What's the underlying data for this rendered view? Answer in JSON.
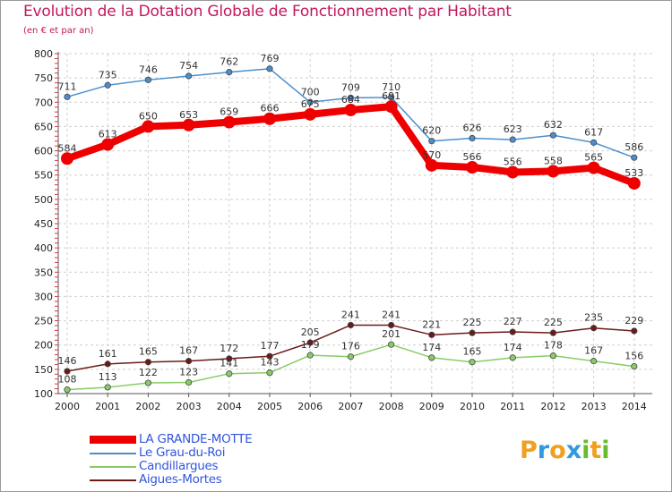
{
  "title": "Evolution de la Dotation Globale de Fonctionnement par Habitant",
  "subtitle": "(en € et par an)",
  "brand": {
    "letters": [
      "P",
      "r",
      "o",
      "x",
      "i",
      "t",
      "i"
    ],
    "colors": [
      "#f0a020",
      "#3399dd",
      "#f0a020",
      "#3399dd",
      "#66bb33",
      "#f0a020",
      "#66bb33"
    ]
  },
  "legend": [
    {
      "label": "LA GRANDE-MOTTE",
      "color": "#ee0000"
    },
    {
      "label": "Le Grau-du-Roi",
      "color": "#4a8fcc"
    },
    {
      "label": "Candillargues",
      "color": "#88cc66"
    },
    {
      "label": "Aigues-Mortes",
      "color": "#6b1a1a"
    }
  ],
  "chart_data": {
    "type": "line",
    "x": [
      "2000",
      "2001",
      "2002",
      "2003",
      "2004",
      "2005",
      "2006",
      "2007",
      "2008",
      "2009",
      "2010",
      "2011",
      "2012",
      "2013",
      "2014"
    ],
    "ylim": [
      100,
      800
    ],
    "yticks": [
      100,
      150,
      200,
      250,
      300,
      350,
      400,
      450,
      500,
      550,
      600,
      650,
      700,
      750,
      800
    ],
    "grid": true,
    "series": [
      {
        "name": "LA GRANDE-MOTTE",
        "color": "#ee0000",
        "values": [
          584,
          613,
          650,
          653,
          659,
          666,
          675,
          684,
          691,
          570,
          566,
          556,
          558,
          565,
          533
        ]
      },
      {
        "name": "Le Grau-du-Roi",
        "color": "#4a8fcc",
        "values": [
          711,
          735,
          746,
          754,
          762,
          769,
          700,
          709,
          710,
          620,
          626,
          623,
          632,
          617,
          586
        ]
      },
      {
        "name": "Candillargues",
        "color": "#88cc66",
        "values": [
          108,
          113,
          122,
          123,
          141,
          143,
          179,
          176,
          201,
          174,
          165,
          174,
          178,
          167,
          156
        ]
      },
      {
        "name": "Aigues-Mortes",
        "color": "#6b1a1a",
        "values": [
          146,
          161,
          165,
          167,
          172,
          177,
          205,
          241,
          241,
          221,
          225,
          227,
          225,
          235,
          229
        ]
      }
    ]
  }
}
